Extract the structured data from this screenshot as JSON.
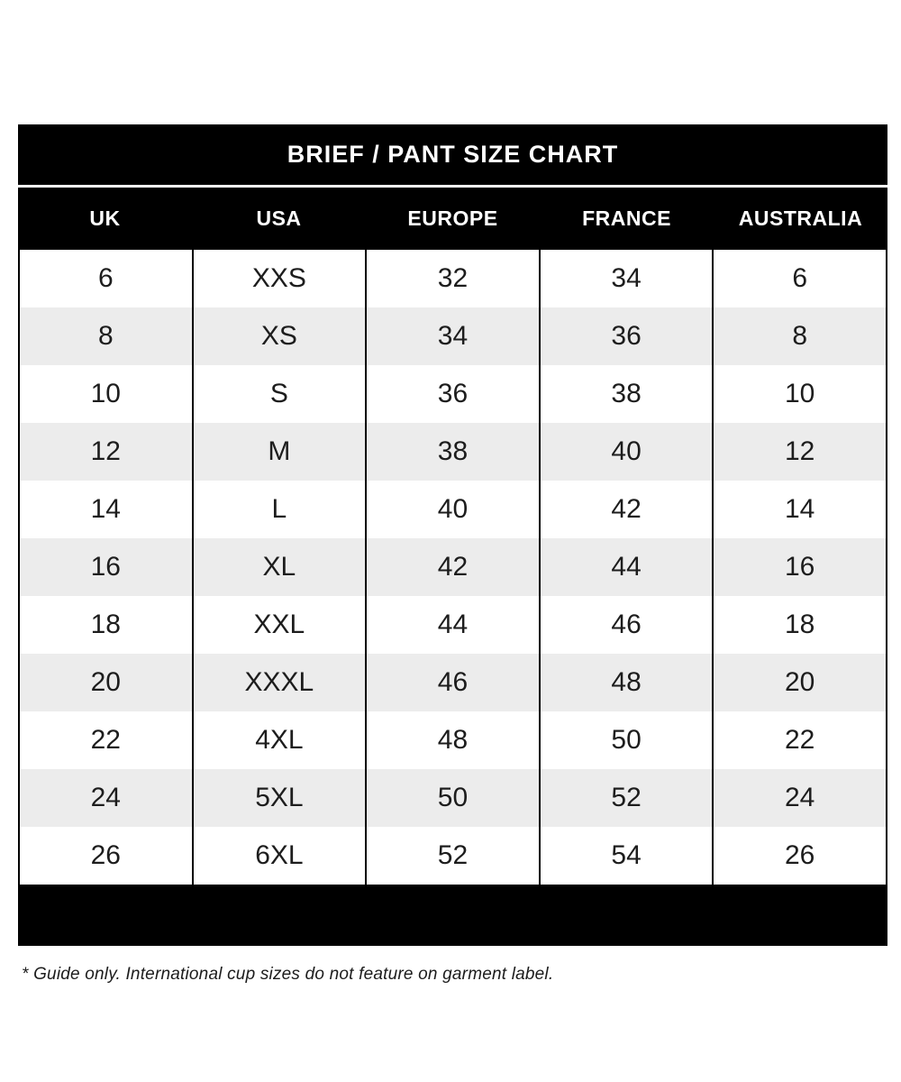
{
  "chart_data": {
    "type": "table",
    "title": "BRIEF / PANT SIZE CHART",
    "columns": [
      "UK",
      "USA",
      "EUROPE",
      "FRANCE",
      "AUSTRALIA"
    ],
    "rows": [
      [
        "6",
        "XXS",
        "32",
        "34",
        "6"
      ],
      [
        "8",
        "XS",
        "34",
        "36",
        "8"
      ],
      [
        "10",
        "S",
        "36",
        "38",
        "10"
      ],
      [
        "12",
        "M",
        "38",
        "40",
        "12"
      ],
      [
        "14",
        "L",
        "40",
        "42",
        "14"
      ],
      [
        "16",
        "XL",
        "42",
        "44",
        "16"
      ],
      [
        "18",
        "XXL",
        "44",
        "46",
        "18"
      ],
      [
        "20",
        "XXXL",
        "46",
        "48",
        "20"
      ],
      [
        "22",
        "4XL",
        "48",
        "50",
        "22"
      ],
      [
        "24",
        "5XL",
        "50",
        "52",
        "24"
      ],
      [
        "26",
        "6XL",
        "52",
        "54",
        "26"
      ]
    ],
    "footnote": "* Guide only. International cup sizes do not feature on garment label.",
    "layout_hints": {
      "striped_rows": true,
      "stripe_starts_on_row": 2
    }
  },
  "colors": {
    "band_background": "#000000",
    "band_text": "#ffffff",
    "row_stripe": "#ececec",
    "grid_border": "#000000",
    "body_text": "#1d1d1d"
  }
}
